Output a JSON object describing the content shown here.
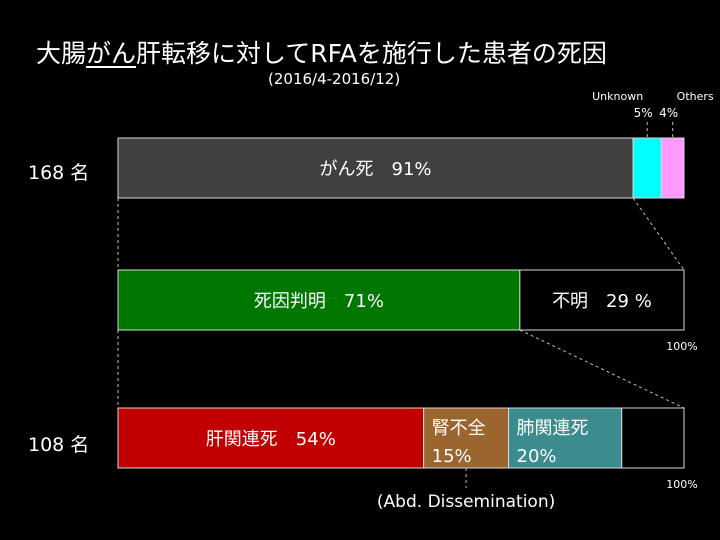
{
  "title": {
    "prefix": "大腸",
    "underlined": "がん",
    "rest": "肝転移に対してRFAを施行した患者の死因"
  },
  "subtitle": "(2016/4-2016/12)",
  "colors": {
    "cancer": "#404040",
    "unknown": "#00ffff",
    "others": "#ff99ff",
    "known": "#007700",
    "unknown2": "#000000",
    "liver": "#c00000",
    "renal": "#9b6530",
    "lung": "#3a8c8f",
    "blank": "#000000",
    "border": "#d9d9d9"
  },
  "chart_data": [
    {
      "type": "bar",
      "stacked": true,
      "row_label": "168 名",
      "segments": [
        {
          "name": "がん死",
          "label": "がん死　91%",
          "value": 91
        },
        {
          "name": "Unknown",
          "label": "Unknown",
          "pct_label": "5%",
          "value": 5
        },
        {
          "name": "Others",
          "label": "Others",
          "pct_label": "4%",
          "value": 4
        }
      ]
    },
    {
      "type": "bar",
      "stacked": true,
      "row_label": "",
      "segments": [
        {
          "name": "死因判明",
          "label": "死因判明　71%",
          "value": 71
        },
        {
          "name": "不明",
          "label": "不明　29 %",
          "value": 29
        }
      ],
      "total_label": "100%"
    },
    {
      "type": "bar",
      "stacked": true,
      "row_label": "108 名",
      "segments": [
        {
          "name": "肝関連死",
          "label": "肝関連死　54%",
          "value": 54
        },
        {
          "name": "腎不全",
          "label": "腎不全",
          "label2": "15%",
          "value": 15
        },
        {
          "name": "肺関連死",
          "label": "肺関連死",
          "label2": "20%",
          "value": 20
        },
        {
          "name": "",
          "label": "",
          "value": 11
        }
      ],
      "total_label": "100%",
      "annotation": "(Abd. Dissemination)"
    }
  ]
}
